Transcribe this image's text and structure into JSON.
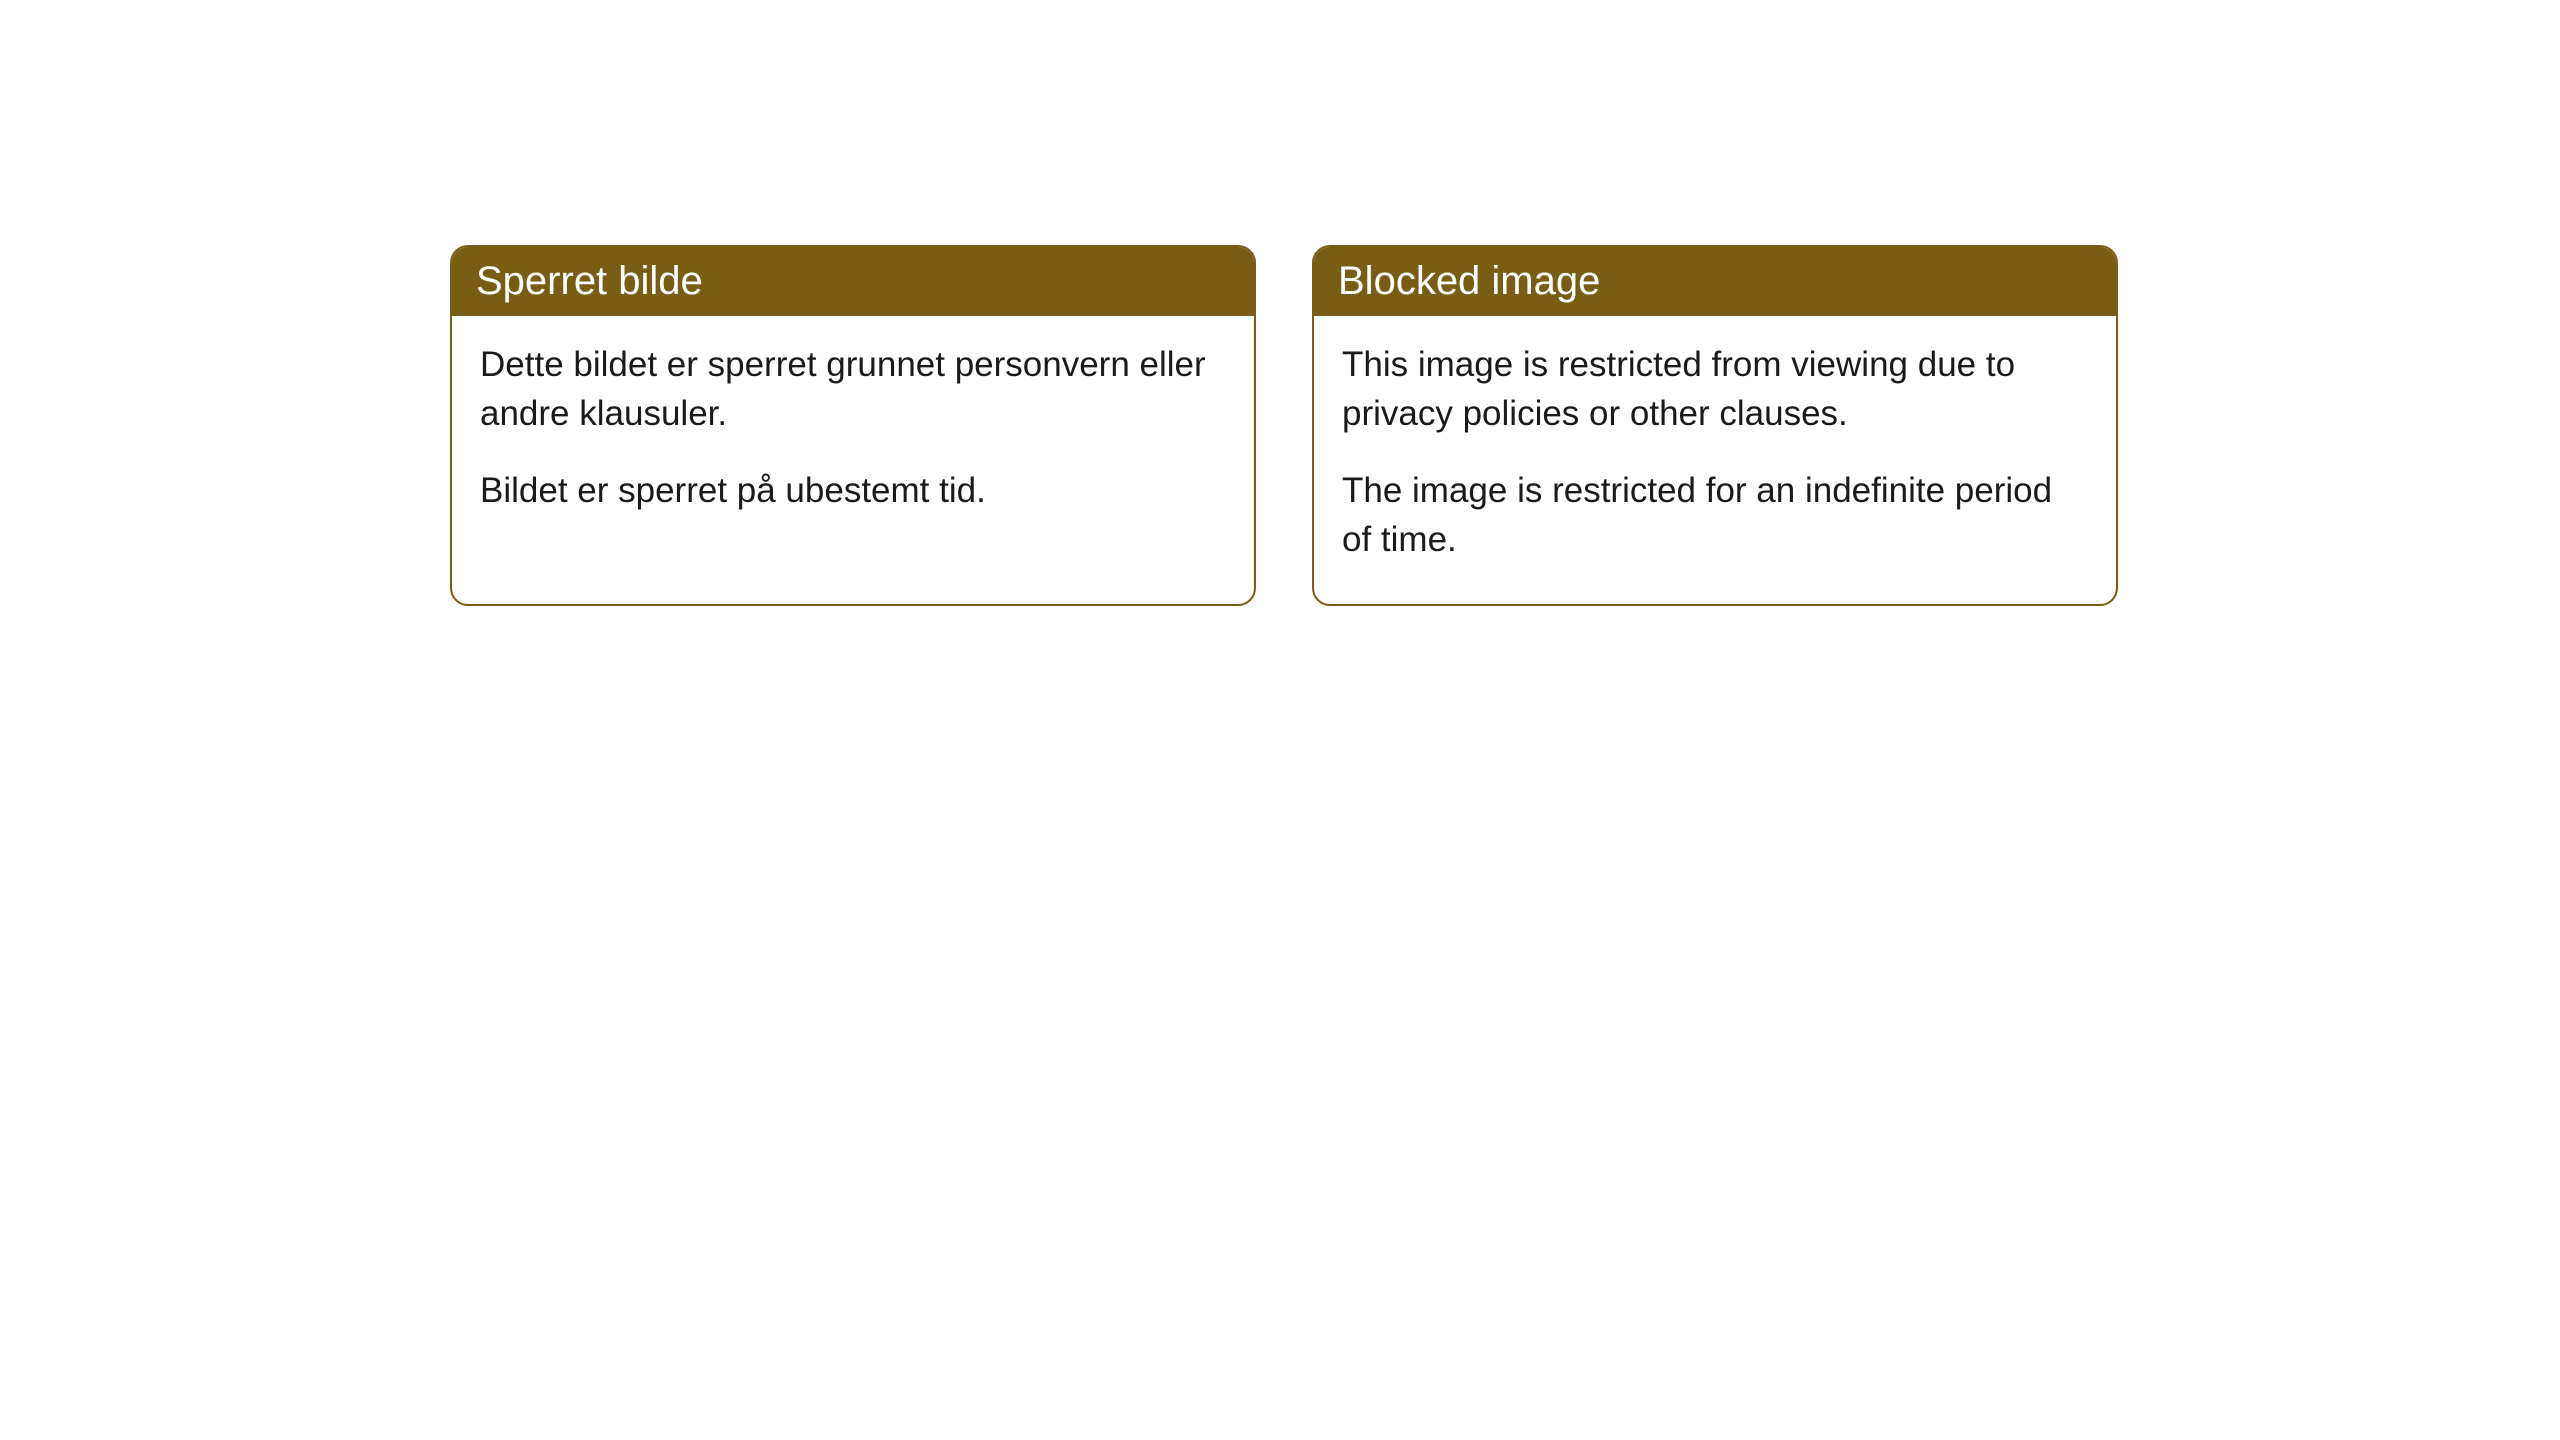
{
  "cards": [
    {
      "title": "Sperret bilde",
      "paragraph1": "Dette bildet er sperret grunnet personvern eller andre klausuler.",
      "paragraph2": "Bildet er sperret på ubestemt tid."
    },
    {
      "title": "Blocked image",
      "paragraph1": "This image is restricted from viewing due to privacy policies or other clauses.",
      "paragraph2": "The image is restricted for an indefinite period of time."
    }
  ],
  "style": {
    "header_background": "#7a5d14",
    "header_text_color": "#ffffff",
    "body_text_color": "#1a1a1a",
    "border_color": "#7a5d14",
    "card_background": "#ffffff",
    "page_background": "#ffffff",
    "border_radius": 18,
    "title_fontsize": 40,
    "body_fontsize": 35
  }
}
